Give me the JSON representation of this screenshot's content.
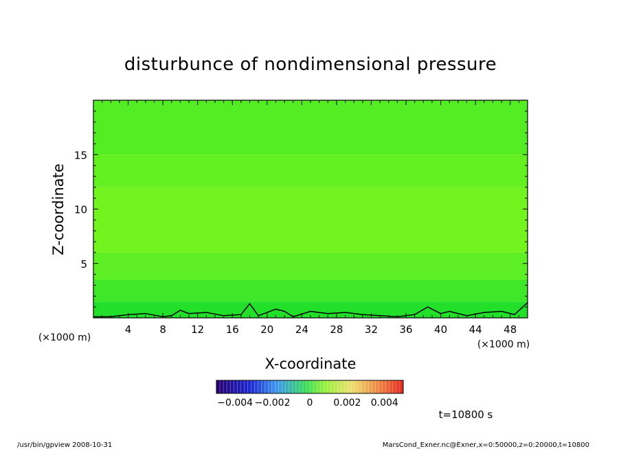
{
  "chart_data": {
    "type": "heatmap",
    "title": "disturbunce of nondimensional pressure",
    "xlabel": "X-coordinate",
    "ylabel": "Z-coordinate",
    "x_unit": "(×1000 m)",
    "y_unit": "(×1000 m)",
    "xlim": [
      0,
      50
    ],
    "ylim": [
      0,
      20
    ],
    "x_ticks": [
      4,
      8,
      12,
      16,
      20,
      24,
      28,
      32,
      36,
      40,
      44,
      48
    ],
    "y_ticks": [
      5,
      10,
      15
    ],
    "colorbar": {
      "range": [
        -0.005,
        0.005
      ],
      "tick_values": [
        -0.004,
        -0.002,
        0,
        0.002,
        0.004
      ],
      "tick_labels": [
        "−0.004",
        "−0.002",
        "0",
        "0.002",
        "0.004"
      ]
    },
    "field_layers": [
      {
        "z_range": [
          0,
          1.5
        ],
        "value": -0.0016,
        "color": "#22e02a"
      },
      {
        "z_range": [
          1.5,
          3.5
        ],
        "value": -0.0011,
        "color": "#3ee828"
      },
      {
        "z_range": [
          3.5,
          6
        ],
        "value": -0.0006,
        "color": "#5ef024"
      },
      {
        "z_range": [
          6,
          12
        ],
        "value": -0.0001,
        "color": "#74f41e"
      },
      {
        "z_range": [
          12,
          15
        ],
        "value": -0.0004,
        "color": "#64f020"
      },
      {
        "z_range": [
          15,
          20
        ],
        "value": -0.0008,
        "color": "#54ec22"
      }
    ],
    "contour": {
      "value": 0,
      "x": [
        0,
        2,
        4,
        6,
        8,
        9,
        10,
        11,
        13,
        15,
        17,
        18,
        19,
        21,
        22,
        23,
        25,
        27,
        29,
        31,
        33,
        35,
        37,
        38.5,
        40,
        41,
        43,
        45,
        47,
        48.5,
        50
      ],
      "z": [
        0.1,
        0.1,
        0.3,
        0.4,
        0.1,
        0.2,
        0.7,
        0.4,
        0.5,
        0.2,
        0.3,
        1.3,
        0.2,
        0.8,
        0.6,
        0.1,
        0.6,
        0.4,
        0.5,
        0.3,
        0.2,
        0.1,
        0.3,
        1.0,
        0.4,
        0.6,
        0.2,
        0.5,
        0.6,
        0.3,
        1.4
      ]
    }
  },
  "time_label": "t=10800 s",
  "footer_left": "/usr/bin/gpview   2008-10-31",
  "footer_right": "MarsCond_Exner.nc@Exner,x=0:50000,z=0:20000,t=10800"
}
